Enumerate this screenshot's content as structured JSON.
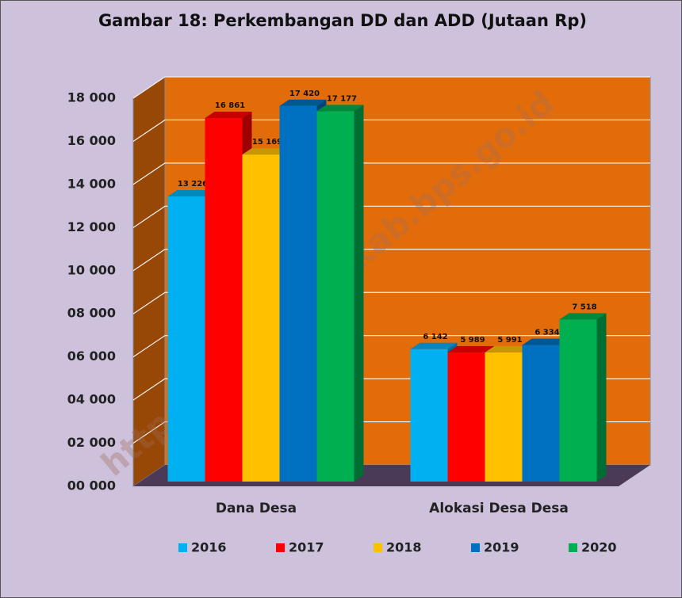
{
  "chart_data": {
    "type": "bar3d",
    "title": "Gambar 18: Perkembangan DD dan ADD (Jutaan Rp)",
    "watermark": "https://lamongankab.bps.go.id",
    "categories": [
      "Dana Desa",
      "Alokasi Desa Desa"
    ],
    "series": [
      {
        "name": "2016",
        "color": "#00b0f0",
        "values": [
          13226,
          6142
        ],
        "value_labels": [
          "13 226",
          "6 142"
        ]
      },
      {
        "name": "2017",
        "color": "#ff0000",
        "values": [
          16861,
          5989
        ],
        "value_labels": [
          "16 861",
          "5 989"
        ]
      },
      {
        "name": "2018",
        "color": "#ffc000",
        "values": [
          15169,
          5991
        ],
        "value_labels": [
          "15 169",
          "5 991"
        ]
      },
      {
        "name": "2019",
        "color": "#0070c0",
        "values": [
          17420,
          6334
        ],
        "value_labels": [
          "17 420",
          "6 334"
        ]
      },
      {
        "name": "2020",
        "color": "#00b050",
        "values": [
          17177,
          7518
        ],
        "value_labels": [
          "17 177",
          "7 518"
        ]
      }
    ],
    "ylim": [
      0,
      18000
    ],
    "yticks": [
      {
        "value": 0,
        "label": "00 000"
      },
      {
        "value": 2000,
        "label": "02 000"
      },
      {
        "value": 4000,
        "label": "04 000"
      },
      {
        "value": 6000,
        "label": "06 000"
      },
      {
        "value": 8000,
        "label": "08 000"
      },
      {
        "value": 10000,
        "label": "10 000"
      },
      {
        "value": 12000,
        "label": "12 000"
      },
      {
        "value": 14000,
        "label": "14 000"
      },
      {
        "value": 16000,
        "label": "16 000"
      },
      {
        "value": 18000,
        "label": "18 000"
      }
    ],
    "grid": true,
    "legend": "bottom"
  }
}
